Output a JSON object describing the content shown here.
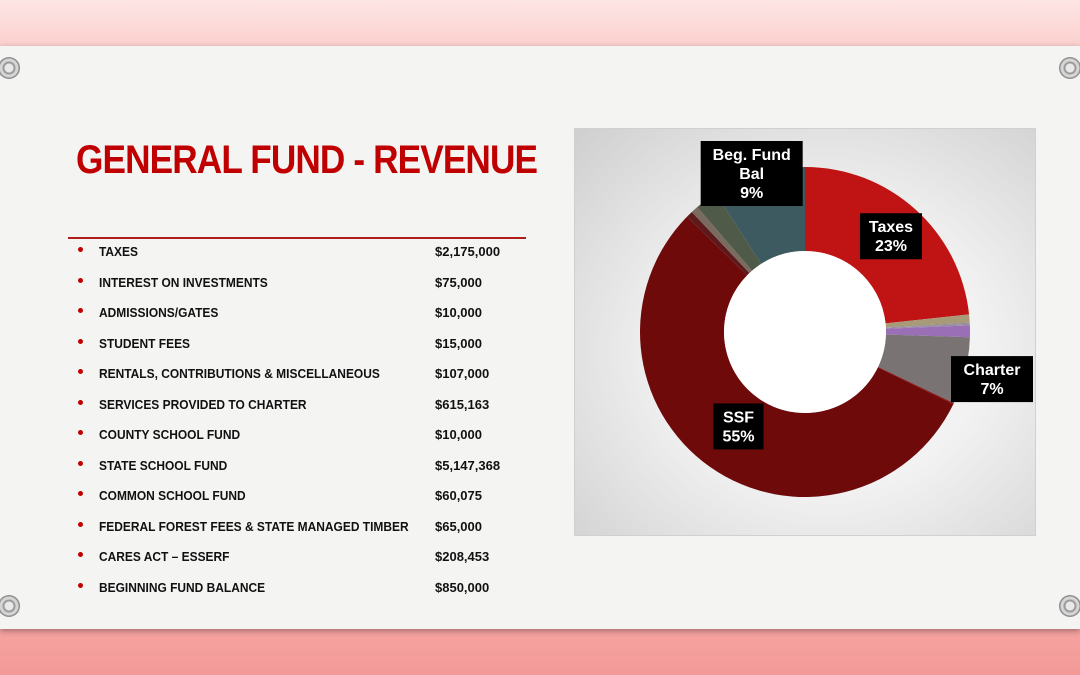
{
  "title": "GENERAL FUND - REVENUE",
  "revenue_items": [
    {
      "label": "TAXES",
      "amount": "$2,175,000"
    },
    {
      "label": "INTEREST ON INVESTMENTS",
      "amount": "$75,000"
    },
    {
      "label": "ADMISSIONS/GATES",
      "amount": "$10,000"
    },
    {
      "label": "STUDENT FEES",
      "amount": "$15,000"
    },
    {
      "label": "RENTALS, CONTRIBUTIONS & MISCELLANEOUS",
      "amount": "$107,000"
    },
    {
      "label": "SERVICES PROVIDED TO CHARTER",
      "amount": "$615,163"
    },
    {
      "label": "COUNTY SCHOOL FUND",
      "amount": "$10,000"
    },
    {
      "label": "STATE SCHOOL FUND",
      "amount": "$5,147,368"
    },
    {
      "label": "COMMON SCHOOL FUND",
      "amount": "$60,075"
    },
    {
      "label": "FEDERAL FOREST FEES & STATE MANAGED TIMBER",
      "amount": "$65,000"
    },
    {
      "label": "CARES ACT – ESSERF",
      "amount": "$208,453"
    },
    {
      "label": "BEGINNING FUND BALANCE",
      "amount": "$850,000"
    }
  ],
  "chart_data": {
    "type": "pie",
    "variant": "donut",
    "values": [
      2175000,
      75000,
      10000,
      15000,
      107000,
      615163,
      10000,
      5147368,
      60075,
      65000,
      208453,
      850000
    ],
    "colors": [
      "#c01313",
      "#a89a78",
      "#8c8c8c",
      "#9a8aa6",
      "#9b6fb6",
      "#7a7373",
      "#8a1010",
      "#6e0a0a",
      "#5c1a1a",
      "#7a6b60",
      "#4f5b48",
      "#3c5a60"
    ],
    "callouts": [
      {
        "slice": 0,
        "lines": [
          "Taxes",
          "23%"
        ]
      },
      {
        "slice": 5,
        "lines": [
          "Charter",
          "7%"
        ]
      },
      {
        "slice": 7,
        "lines": [
          "SSF",
          "55%"
        ]
      },
      {
        "slice": 11,
        "lines": [
          "Beg. Fund",
          "Bal",
          "9%"
        ]
      }
    ],
    "start_angle_deg": 0,
    "direction": "clockwise",
    "legend": "none"
  }
}
